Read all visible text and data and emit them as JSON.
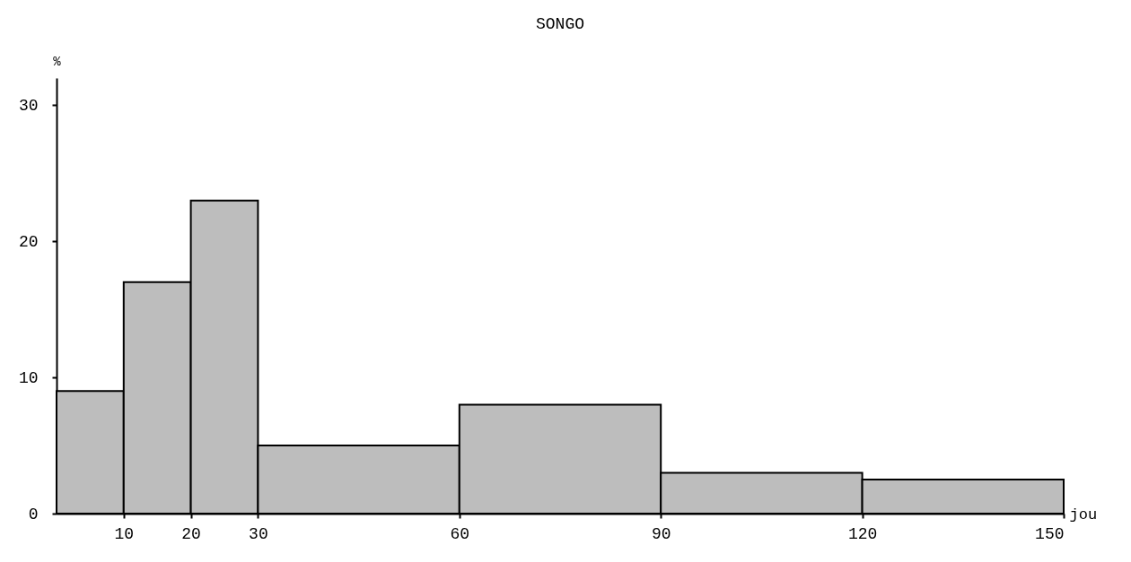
{
  "chart_data": {
    "type": "histogram",
    "title": "SONGO",
    "xlabel": "jou",
    "ylabel": "%",
    "bins": [
      0,
      10,
      20,
      30,
      60,
      90,
      120,
      150
    ],
    "values": [
      9,
      17,
      23,
      5,
      8,
      3,
      2.5
    ],
    "color": "#bdbdbd",
    "xlim": [
      0,
      150
    ],
    "xticks": [
      10,
      20,
      30,
      60,
      90,
      120,
      150
    ],
    "ylim": [
      0,
      32
    ],
    "yticks": [
      0,
      10,
      20,
      30
    ],
    "grid": false
  }
}
